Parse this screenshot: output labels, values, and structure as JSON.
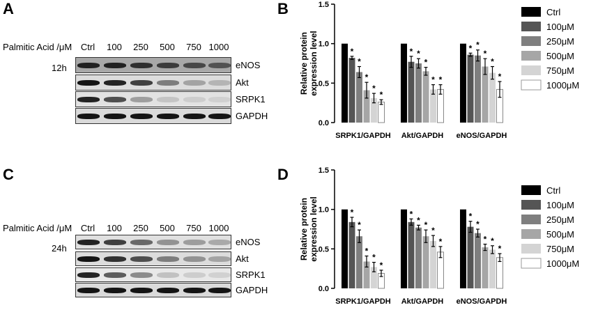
{
  "panels": {
    "a": "A",
    "b": "B",
    "c": "C",
    "d": "D"
  },
  "blots": [
    {
      "id": "a",
      "header": "Palmitic Acid /μM",
      "lanes": [
        "Ctrl",
        "100",
        "250",
        "500",
        "750",
        "1000"
      ],
      "time": "12h",
      "proteins": [
        {
          "name": "eNOS",
          "bg": "#a8a8a8",
          "intensity": [
            0.95,
            0.95,
            0.9,
            0.85,
            0.8,
            0.75
          ]
        },
        {
          "name": "Akt",
          "bg": "#dcdcdc",
          "intensity": [
            1.0,
            0.95,
            0.85,
            0.6,
            0.4,
            0.3
          ]
        },
        {
          "name": "SRPK1",
          "bg": "#e2e2e2",
          "intensity": [
            0.95,
            0.8,
            0.45,
            0.2,
            0.12,
            0.1
          ]
        },
        {
          "name": "GAPDH",
          "bg": "#dadada",
          "intensity": [
            1.0,
            1.0,
            1.0,
            1.0,
            1.0,
            1.0
          ]
        }
      ]
    },
    {
      "id": "c",
      "header": "Palmitic Acid /μM",
      "lanes": [
        "Ctrl",
        "100",
        "250",
        "500",
        "750",
        "1000"
      ],
      "time": "24h",
      "proteins": [
        {
          "name": "eNOS",
          "bg": "#e0e0e0",
          "intensity": [
            0.95,
            0.85,
            0.7,
            0.5,
            0.45,
            0.38
          ]
        },
        {
          "name": "Akt",
          "bg": "#dcdcdc",
          "intensity": [
            1.0,
            0.9,
            0.8,
            0.6,
            0.5,
            0.4
          ]
        },
        {
          "name": "SRPK1",
          "bg": "#e8e8e8",
          "intensity": [
            0.95,
            0.75,
            0.55,
            0.25,
            0.15,
            0.12
          ]
        },
        {
          "name": "GAPDH",
          "bg": "#dadada",
          "intensity": [
            1.0,
            1.0,
            1.0,
            1.0,
            1.0,
            1.0
          ]
        }
      ]
    }
  ],
  "legend": [
    {
      "label": "Ctrl",
      "color": "#000000"
    },
    {
      "label": "100μM",
      "color": "#555555"
    },
    {
      "label": "250μM",
      "color": "#7f7f7f"
    },
    {
      "label": "500μM",
      "color": "#a6a6a6"
    },
    {
      "label": "750μM",
      "color": "#d4d4d4"
    },
    {
      "label": "1000μM",
      "color": "#ffffff"
    }
  ],
  "chart_data": [
    {
      "type": "bar",
      "panel": "B",
      "ylabel": "Relative protein expression level",
      "ylim": [
        0,
        1.5
      ],
      "yticks": [
        "0.0",
        "0.5",
        "1.0",
        "1.5"
      ],
      "categories": [
        "SRPK1/GAPDH",
        "Akt/GAPDH",
        "eNOS/GAPDH"
      ],
      "series": [
        {
          "name": "Ctrl",
          "values": [
            1.0,
            1.0,
            1.0
          ],
          "errors": [
            0,
            0,
            0
          ],
          "sig": [
            false,
            false,
            false
          ]
        },
        {
          "name": "100μM",
          "values": [
            0.82,
            0.77,
            0.86
          ],
          "errors": [
            0.02,
            0.07,
            0.02
          ],
          "sig": [
            true,
            true,
            true
          ]
        },
        {
          "name": "250μM",
          "values": [
            0.64,
            0.75,
            0.85
          ],
          "errors": [
            0.07,
            0.06,
            0.07
          ],
          "sig": [
            true,
            true,
            true
          ]
        },
        {
          "name": "500μM",
          "values": [
            0.41,
            0.65,
            0.71
          ],
          "errors": [
            0.1,
            0.05,
            0.1
          ],
          "sig": [
            true,
            true,
            true
          ]
        },
        {
          "name": "750μM",
          "values": [
            0.31,
            0.42,
            0.63
          ],
          "errors": [
            0.06,
            0.06,
            0.08
          ],
          "sig": [
            true,
            true,
            true
          ]
        },
        {
          "name": "1000μM",
          "values": [
            0.26,
            0.42,
            0.42
          ],
          "errors": [
            0.03,
            0.06,
            0.1
          ],
          "sig": [
            true,
            true,
            true
          ]
        }
      ]
    },
    {
      "type": "bar",
      "panel": "D",
      "ylabel": "Relative protein expression level",
      "ylim": [
        0,
        1.5
      ],
      "yticks": [
        "0.0",
        "0.5",
        "1.0",
        "1.5"
      ],
      "categories": [
        "SRPK1/GAPDH",
        "Akt/GAPDH",
        "eNOS/GAPDH"
      ],
      "series": [
        {
          "name": "Ctrl",
          "values": [
            1.0,
            1.0,
            1.0
          ],
          "errors": [
            0,
            0,
            0
          ],
          "sig": [
            false,
            false,
            false
          ]
        },
        {
          "name": "100μM",
          "values": [
            0.84,
            0.84,
            0.78
          ],
          "errors": [
            0.06,
            0.04,
            0.07
          ],
          "sig": [
            true,
            true,
            true
          ]
        },
        {
          "name": "250μM",
          "values": [
            0.66,
            0.77,
            0.7
          ],
          "errors": [
            0.08,
            0.03,
            0.05
          ],
          "sig": [
            true,
            true,
            true
          ]
        },
        {
          "name": "500μM",
          "values": [
            0.34,
            0.66,
            0.52
          ],
          "errors": [
            0.07,
            0.08,
            0.04
          ],
          "sig": [
            true,
            true,
            true
          ]
        },
        {
          "name": "750μM",
          "values": [
            0.27,
            0.6,
            0.49
          ],
          "errors": [
            0.06,
            0.07,
            0.05
          ],
          "sig": [
            true,
            true,
            true
          ]
        },
        {
          "name": "1000μM",
          "values": [
            0.19,
            0.46,
            0.39
          ],
          "errors": [
            0.04,
            0.07,
            0.05
          ],
          "sig": [
            true,
            true,
            true
          ]
        }
      ]
    }
  ]
}
